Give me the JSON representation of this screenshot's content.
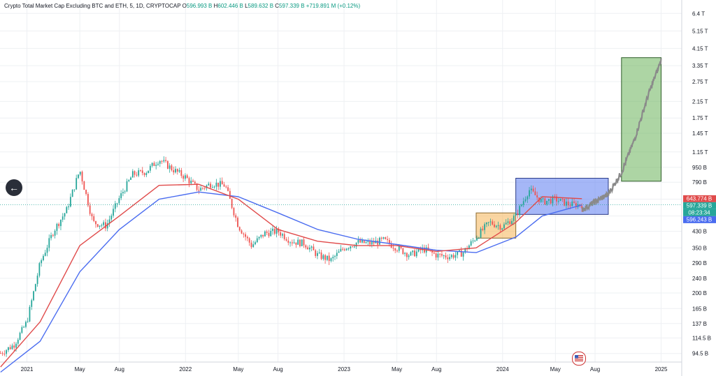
{
  "header": {
    "title": "Crypto Total Market Cap Excluding BTC and ETH, 5, 1D, CRYPTOCAP",
    "o_label": "O",
    "o_value": "596.993 B",
    "h_label": "H",
    "h_value": "602.446 B",
    "l_label": "L",
    "l_value": "589.632 B",
    "c_label": "C",
    "c_value": "597.339 B",
    "change": "+719.891 M (+0.12%)"
  },
  "colors": {
    "bull": "#26a69a",
    "bear": "#ef5350",
    "text": "#131722",
    "ma_fast": "#e04b4b",
    "ma_slow": "#4a6cf0",
    "box_orange": "#f5b456",
    "box_blue": "#5b7cf0",
    "box_green": "#69b35a",
    "projection": "#8a8a8a",
    "current_line": "#26a69a"
  },
  "icons": {
    "back": "back-arrow-icon",
    "flag": "us-flag-icon"
  },
  "price_badges": [
    {
      "label": "643.774 B",
      "color": "#e04b4b"
    },
    {
      "label": "597.339 B",
      "color": "#26a69a"
    },
    {
      "label": "08:23:34",
      "color": "#26a69a"
    },
    {
      "label": "596.243 B",
      "color": "#4a6cf0"
    }
  ],
  "chart_data": {
    "type": "candlestick",
    "title": "Crypto Total Market Cap Excluding BTC and ETH, 5, 1D, CRYPTOCAP",
    "y_scale": "log",
    "y_ticks": [
      "94.5 B",
      "114.5 B",
      "137 B",
      "165 B",
      "200 B",
      "240 B",
      "290 B",
      "350 B",
      "430 B",
      "520 B",
      "640 B",
      "790 B",
      "950 B",
      "1.15 T",
      "1.45 T",
      "1.75 T",
      "2.15 T",
      "2.75 T",
      "3.35 T",
      "4.15 T",
      "5.15 T",
      "6.4 T"
    ],
    "x_ticks": [
      "2021",
      "May",
      "Aug",
      "2022",
      "May",
      "Aug",
      "2023",
      "May",
      "Aug",
      "2024",
      "May",
      "Aug",
      "2025"
    ],
    "price_series": [
      {
        "t": "2020-11",
        "v": 95
      },
      {
        "t": "2020-12",
        "v": 105
      },
      {
        "t": "2021-01",
        "v": 140
      },
      {
        "t": "2021-02",
        "v": 290
      },
      {
        "t": "2021-03",
        "v": 430
      },
      {
        "t": "2021-04",
        "v": 560
      },
      {
        "t": "2021-05",
        "v": 920
      },
      {
        "t": "2021-06",
        "v": 480
      },
      {
        "t": "2021-07",
        "v": 460
      },
      {
        "t": "2021-08",
        "v": 650
      },
      {
        "t": "2021-09",
        "v": 870
      },
      {
        "t": "2021-10",
        "v": 900
      },
      {
        "t": "2021-11",
        "v": 1050
      },
      {
        "t": "2021-12",
        "v": 930
      },
      {
        "t": "2022-01",
        "v": 840
      },
      {
        "t": "2022-02",
        "v": 720
      },
      {
        "t": "2022-03",
        "v": 780
      },
      {
        "t": "2022-04",
        "v": 760
      },
      {
        "t": "2022-05",
        "v": 460
      },
      {
        "t": "2022-06",
        "v": 360
      },
      {
        "t": "2022-07",
        "v": 420
      },
      {
        "t": "2022-08",
        "v": 430
      },
      {
        "t": "2022-09",
        "v": 380
      },
      {
        "t": "2022-10",
        "v": 370
      },
      {
        "t": "2022-11",
        "v": 320
      },
      {
        "t": "2022-12",
        "v": 300
      },
      {
        "t": "2023-01",
        "v": 350
      },
      {
        "t": "2023-02",
        "v": 375
      },
      {
        "t": "2023-03",
        "v": 370
      },
      {
        "t": "2023-04",
        "v": 385
      },
      {
        "t": "2023-05",
        "v": 350
      },
      {
        "t": "2023-06",
        "v": 320
      },
      {
        "t": "2023-07",
        "v": 345
      },
      {
        "t": "2023-08",
        "v": 320
      },
      {
        "t": "2023-09",
        "v": 315
      },
      {
        "t": "2023-10",
        "v": 330
      },
      {
        "t": "2023-11",
        "v": 400
      },
      {
        "t": "2023-12",
        "v": 480
      },
      {
        "t": "2024-01",
        "v": 455
      },
      {
        "t": "2024-02",
        "v": 520
      },
      {
        "t": "2024-03",
        "v": 720
      },
      {
        "t": "2024-04",
        "v": 620
      },
      {
        "t": "2024-05",
        "v": 640
      },
      {
        "t": "2024-06",
        "v": 600
      },
      {
        "t": "2024-07",
        "v": 597
      }
    ],
    "ma_fast": [
      {
        "t": "2020-11",
        "v": 80
      },
      {
        "t": "2021-02",
        "v": 140
      },
      {
        "t": "2021-05",
        "v": 360
      },
      {
        "t": "2021-08",
        "v": 520
      },
      {
        "t": "2021-11",
        "v": 760
      },
      {
        "t": "2022-02",
        "v": 770
      },
      {
        "t": "2022-05",
        "v": 640
      },
      {
        "t": "2022-08",
        "v": 440
      },
      {
        "t": "2022-11",
        "v": 380
      },
      {
        "t": "2023-02",
        "v": 360
      },
      {
        "t": "2023-05",
        "v": 360
      },
      {
        "t": "2023-08",
        "v": 335
      },
      {
        "t": "2023-11",
        "v": 350
      },
      {
        "t": "2024-02",
        "v": 480
      },
      {
        "t": "2024-04",
        "v": 660
      },
      {
        "t": "2024-07",
        "v": 644
      }
    ],
    "ma_slow": [
      {
        "t": "2020-11",
        "v": 75
      },
      {
        "t": "2021-02",
        "v": 110
      },
      {
        "t": "2021-05",
        "v": 260
      },
      {
        "t": "2021-08",
        "v": 440
      },
      {
        "t": "2021-11",
        "v": 640
      },
      {
        "t": "2022-02",
        "v": 700
      },
      {
        "t": "2022-05",
        "v": 660
      },
      {
        "t": "2022-08",
        "v": 540
      },
      {
        "t": "2022-11",
        "v": 440
      },
      {
        "t": "2023-02",
        "v": 390
      },
      {
        "t": "2023-05",
        "v": 365
      },
      {
        "t": "2023-08",
        "v": 340
      },
      {
        "t": "2023-11",
        "v": 330
      },
      {
        "t": "2024-02",
        "v": 400
      },
      {
        "t": "2024-04",
        "v": 520
      },
      {
        "t": "2024-07",
        "v": 596
      }
    ],
    "projection": [
      {
        "t": "2024-07",
        "v": 560
      },
      {
        "t": "2024-08",
        "v": 620
      },
      {
        "t": "2024-09",
        "v": 680
      },
      {
        "t": "2024-10",
        "v": 890
      },
      {
        "t": "2024-11",
        "v": 1350
      },
      {
        "t": "2024-12",
        "v": 2300
      },
      {
        "t": "2025-01",
        "v": 3600
      }
    ],
    "boxes": [
      {
        "color": "orange",
        "t0": "2023-11",
        "t1": "2024-02",
        "v0": 395,
        "v1": 540
      },
      {
        "color": "blue",
        "t0": "2024-02",
        "t1": "2024-09",
        "v0": 530,
        "v1": 830
      },
      {
        "color": "green",
        "t0": "2024-10",
        "t1": "2025-01",
        "v0": 800,
        "v1": 3700
      }
    ],
    "last_price": 597.339,
    "grid": true
  }
}
